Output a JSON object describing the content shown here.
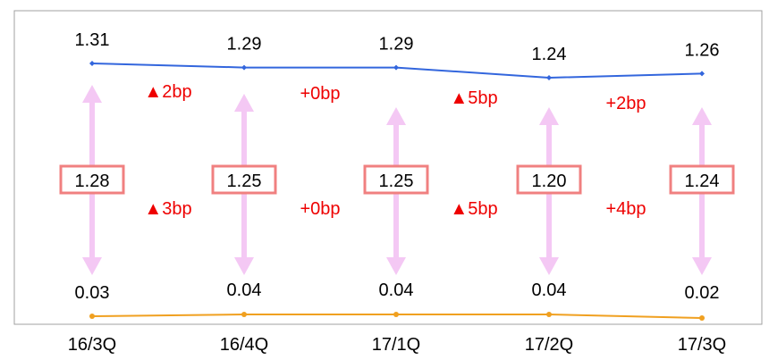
{
  "chart_data": {
    "type": "line",
    "categories": [
      "16/3Q",
      "16/4Q",
      "17/1Q",
      "17/2Q",
      "17/3Q"
    ],
    "series": [
      {
        "values": [
          1.31,
          1.29,
          1.29,
          1.24,
          1.26
        ],
        "labels": [
          "1.31",
          "1.29",
          "1.29",
          "1.24",
          "1.26"
        ],
        "color": "#3366dd"
      },
      {
        "values": [
          0.03,
          0.04,
          0.04,
          0.04,
          0.02
        ],
        "labels": [
          "0.03",
          "0.04",
          "0.04",
          "0.04",
          "0.02"
        ],
        "color": "#f0a020"
      }
    ],
    "spread": {
      "values": [
        1.28,
        1.25,
        1.25,
        1.2,
        1.24
      ],
      "labels": [
        "1.28",
        "1.25",
        "1.25",
        "1.20",
        "1.24"
      ],
      "box_color": "#f08080",
      "arrow_color": "#f4c8f4"
    },
    "changes_upper": [
      "▲2bp",
      "+0bp",
      "▲5bp",
      "+2bp"
    ],
    "changes_lower": [
      "▲3bp",
      "+0bp",
      "▲5bp",
      "+4bp"
    ],
    "change_color": "#ee0000",
    "grid": false,
    "legend": "none"
  }
}
